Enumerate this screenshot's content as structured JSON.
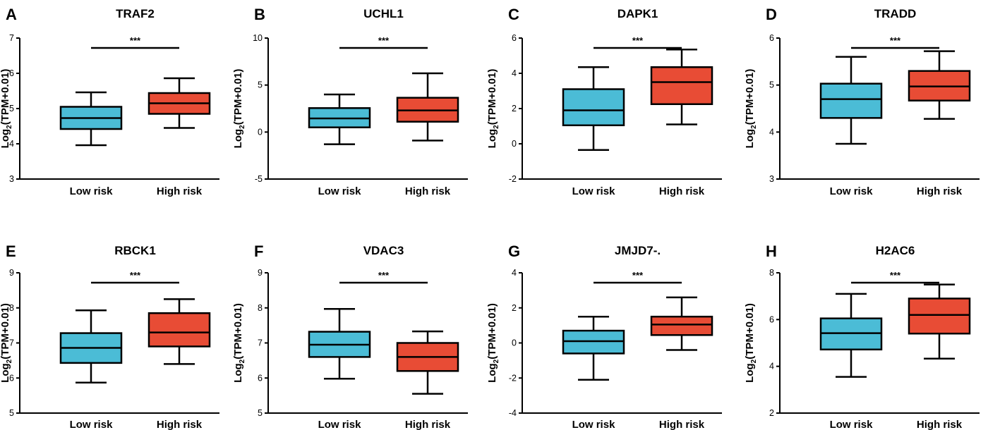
{
  "colors": {
    "low_risk": "#4bbcd6",
    "high_risk": "#e84c35",
    "stroke": "#000000"
  },
  "chart_data": [
    {
      "type": "box",
      "panel": "A",
      "title": "TRAF2",
      "ylabel": "Log2(TPM+0.01)",
      "ylim": [
        3,
        7
      ],
      "yticks": [
        "3",
        "4",
        "5",
        "6",
        "7"
      ],
      "yticks_values": [
        3,
        4,
        5,
        6,
        7
      ],
      "categories": [
        "Low risk",
        "High risk"
      ],
      "significance": "***",
      "series": [
        {
          "name": "Low risk",
          "min": 3.96,
          "q1": 4.42,
          "median": 4.73,
          "q3": 5.05,
          "max": 5.46
        },
        {
          "name": "High risk",
          "min": 4.45,
          "q1": 4.85,
          "median": 5.15,
          "q3": 5.44,
          "max": 5.86
        }
      ]
    },
    {
      "type": "box",
      "panel": "B",
      "title": "UCHL1",
      "ylabel": "Log2(TPM+0.01)",
      "ylim": [
        -5,
        10
      ],
      "yticks": [
        "-5",
        "0",
        "5",
        "10"
      ],
      "yticks_values": [
        -5,
        0,
        5,
        10
      ],
      "categories": [
        "Low risk",
        "High risk"
      ],
      "significance": "***",
      "series": [
        {
          "name": "Low risk",
          "min": -1.3,
          "q1": 0.5,
          "median": 1.45,
          "q3": 2.55,
          "max": 4.0
        },
        {
          "name": "High risk",
          "min": -0.9,
          "q1": 1.1,
          "median": 2.3,
          "q3": 3.65,
          "max": 6.25
        }
      ]
    },
    {
      "type": "box",
      "panel": "C",
      "title": "DAPK1",
      "ylabel": "Log2(TPM+0.01)",
      "ylim": [
        -2,
        6
      ],
      "yticks": [
        "-2",
        "0",
        "2",
        "4",
        "6"
      ],
      "yticks_values": [
        -2,
        0,
        2,
        4,
        6
      ],
      "categories": [
        "Low risk",
        "High risk"
      ],
      "significance": "***",
      "series": [
        {
          "name": "Low risk",
          "min": -0.35,
          "q1": 1.05,
          "median": 1.9,
          "q3": 3.1,
          "max": 4.35
        },
        {
          "name": "High risk",
          "min": 1.1,
          "q1": 2.25,
          "median": 3.5,
          "q3": 4.35,
          "max": 5.35
        }
      ]
    },
    {
      "type": "box",
      "panel": "D",
      "title": "TRADD",
      "ylabel": "Log2(TPM+0.01)",
      "ylim": [
        3,
        6
      ],
      "yticks": [
        "3",
        "4",
        "5",
        "6"
      ],
      "yticks_values": [
        3,
        4,
        5,
        6
      ],
      "categories": [
        "Low risk",
        "High risk"
      ],
      "significance": "***",
      "series": [
        {
          "name": "Low risk",
          "min": 3.75,
          "q1": 4.3,
          "median": 4.7,
          "q3": 5.03,
          "max": 5.6
        },
        {
          "name": "High risk",
          "min": 4.28,
          "q1": 4.67,
          "median": 4.97,
          "q3": 5.3,
          "max": 5.72
        }
      ]
    },
    {
      "type": "box",
      "panel": "E",
      "title": "RBCK1",
      "ylabel": "Log2(TPM+0.01)",
      "ylim": [
        5,
        9
      ],
      "yticks": [
        "5",
        "6",
        "7",
        "8",
        "9"
      ],
      "yticks_values": [
        5,
        6,
        7,
        8,
        9
      ],
      "categories": [
        "Low risk",
        "High risk"
      ],
      "significance": "***",
      "series": [
        {
          "name": "Low risk",
          "min": 5.87,
          "q1": 6.43,
          "median": 6.86,
          "q3": 7.28,
          "max": 7.93
        },
        {
          "name": "High risk",
          "min": 6.4,
          "q1": 6.9,
          "median": 7.3,
          "q3": 7.85,
          "max": 8.25
        }
      ]
    },
    {
      "type": "box",
      "panel": "F",
      "title": "VDAC3",
      "ylabel": "Log2(TPM+0.01)",
      "ylim": [
        5,
        9
      ],
      "yticks": [
        "5",
        "6",
        "7",
        "8",
        "9"
      ],
      "yticks_values": [
        5,
        6,
        7,
        8,
        9
      ],
      "categories": [
        "Low risk",
        "High risk"
      ],
      "significance": "***",
      "series": [
        {
          "name": "Low risk",
          "min": 5.98,
          "q1": 6.6,
          "median": 6.95,
          "q3": 7.32,
          "max": 7.97
        },
        {
          "name": "High risk",
          "min": 5.55,
          "q1": 6.2,
          "median": 6.6,
          "q3": 7.0,
          "max": 7.33
        }
      ]
    },
    {
      "type": "box",
      "panel": "G",
      "title": "JMJD7-.",
      "ylabel": "Log2(TPM+0.01)",
      "ylim": [
        -4,
        4
      ],
      "yticks": [
        "-4",
        "-2",
        "0",
        "2",
        "4"
      ],
      "yticks_values": [
        -4,
        -2,
        0,
        2,
        4
      ],
      "categories": [
        "Low risk",
        "High risk"
      ],
      "significance": "***",
      "series": [
        {
          "name": "Low risk",
          "min": -2.1,
          "q1": -0.6,
          "median": 0.1,
          "q3": 0.7,
          "max": 1.5
        },
        {
          "name": "High risk",
          "min": -0.4,
          "q1": 0.45,
          "median": 1.05,
          "q3": 1.5,
          "max": 2.6
        }
      ]
    },
    {
      "type": "box",
      "panel": "H",
      "title": "H2AC6",
      "ylabel": "Log2(TPM+0.01)",
      "ylim": [
        2,
        8
      ],
      "yticks": [
        "2",
        "4",
        "6",
        "8"
      ],
      "yticks_values": [
        2,
        4,
        6,
        8
      ],
      "categories": [
        "Low risk",
        "High risk"
      ],
      "significance": "***",
      "series": [
        {
          "name": "Low risk",
          "min": 3.55,
          "q1": 4.72,
          "median": 5.42,
          "q3": 6.05,
          "max": 7.1
        },
        {
          "name": "High risk",
          "min": 4.33,
          "q1": 5.4,
          "median": 6.2,
          "q3": 6.9,
          "max": 7.5
        }
      ]
    }
  ]
}
